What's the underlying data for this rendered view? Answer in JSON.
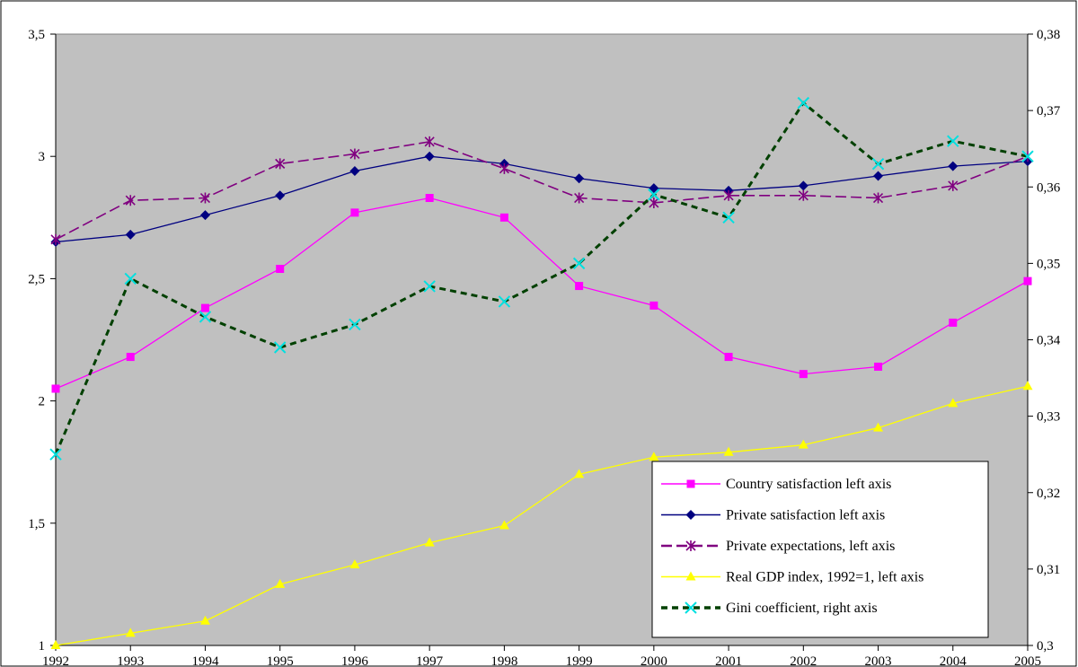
{
  "chart_data": {
    "type": "line",
    "title": "",
    "xlabel": "",
    "ylabel": "",
    "categories": [
      "1992",
      "1993",
      "1994",
      "1995",
      "1996",
      "1997",
      "1998",
      "1999",
      "2000",
      "2001",
      "2002",
      "2003",
      "2004",
      "2005"
    ],
    "y_left": {
      "ylim": [
        1,
        3.5
      ],
      "ticks": [
        "1",
        "1,5",
        "2",
        "2,5",
        "3",
        "3,5"
      ],
      "tick_values": [
        1,
        1.5,
        2,
        2.5,
        3,
        3.5
      ]
    },
    "y_right": {
      "ylim": [
        0.3,
        0.38
      ],
      "ticks": [
        "0,3",
        "0,31",
        "0,32",
        "0,33",
        "0,34",
        "0,35",
        "0,36",
        "0,37",
        "0,38"
      ],
      "tick_values": [
        0.3,
        0.31,
        0.32,
        0.33,
        0.34,
        0.35,
        0.36,
        0.37,
        0.38
      ]
    },
    "grid": false,
    "legend_position": "bottom-right",
    "plot_background": "#c0c0c0",
    "series": [
      {
        "name": "Country satisfaction left axis",
        "axis": "left",
        "color": "#ff00ff",
        "marker": "square",
        "dash": "solid",
        "values": [
          2.05,
          2.18,
          2.38,
          2.54,
          2.77,
          2.83,
          2.75,
          2.47,
          2.39,
          2.18,
          2.11,
          2.14,
          2.32,
          2.49
        ]
      },
      {
        "name": "Private satisfaction left axis",
        "axis": "left",
        "color": "#000080",
        "marker": "diamond",
        "dash": "solid",
        "values": [
          2.65,
          2.68,
          2.76,
          2.84,
          2.94,
          3.0,
          2.97,
          2.91,
          2.87,
          2.86,
          2.88,
          2.92,
          2.96,
          2.98
        ]
      },
      {
        "name": "Private expectations, left axis",
        "axis": "left",
        "color": "#800080",
        "marker": "star",
        "dash": "dashed",
        "values": [
          2.66,
          2.82,
          2.83,
          2.97,
          3.01,
          3.06,
          2.95,
          2.83,
          2.81,
          2.84,
          2.84,
          2.83,
          2.88,
          3.0
        ]
      },
      {
        "name": "Real GDP index, 1992=1, left axis",
        "axis": "left",
        "color": "#ffff00",
        "marker": "triangle",
        "dash": "solid",
        "values": [
          1.0,
          1.05,
          1.1,
          1.25,
          1.33,
          1.42,
          1.49,
          1.7,
          1.77,
          1.79,
          1.82,
          1.89,
          1.99,
          2.06
        ]
      },
      {
        "name": "Gini coefficient, right axis",
        "axis": "right",
        "color": "#004000",
        "marker": "x",
        "marker_color": "#00e0e0",
        "dash": "dotted",
        "values": [
          0.325,
          0.348,
          0.343,
          0.339,
          0.342,
          0.347,
          0.345,
          0.35,
          0.359,
          0.356,
          0.371,
          0.363,
          0.366,
          0.364
        ]
      }
    ]
  }
}
